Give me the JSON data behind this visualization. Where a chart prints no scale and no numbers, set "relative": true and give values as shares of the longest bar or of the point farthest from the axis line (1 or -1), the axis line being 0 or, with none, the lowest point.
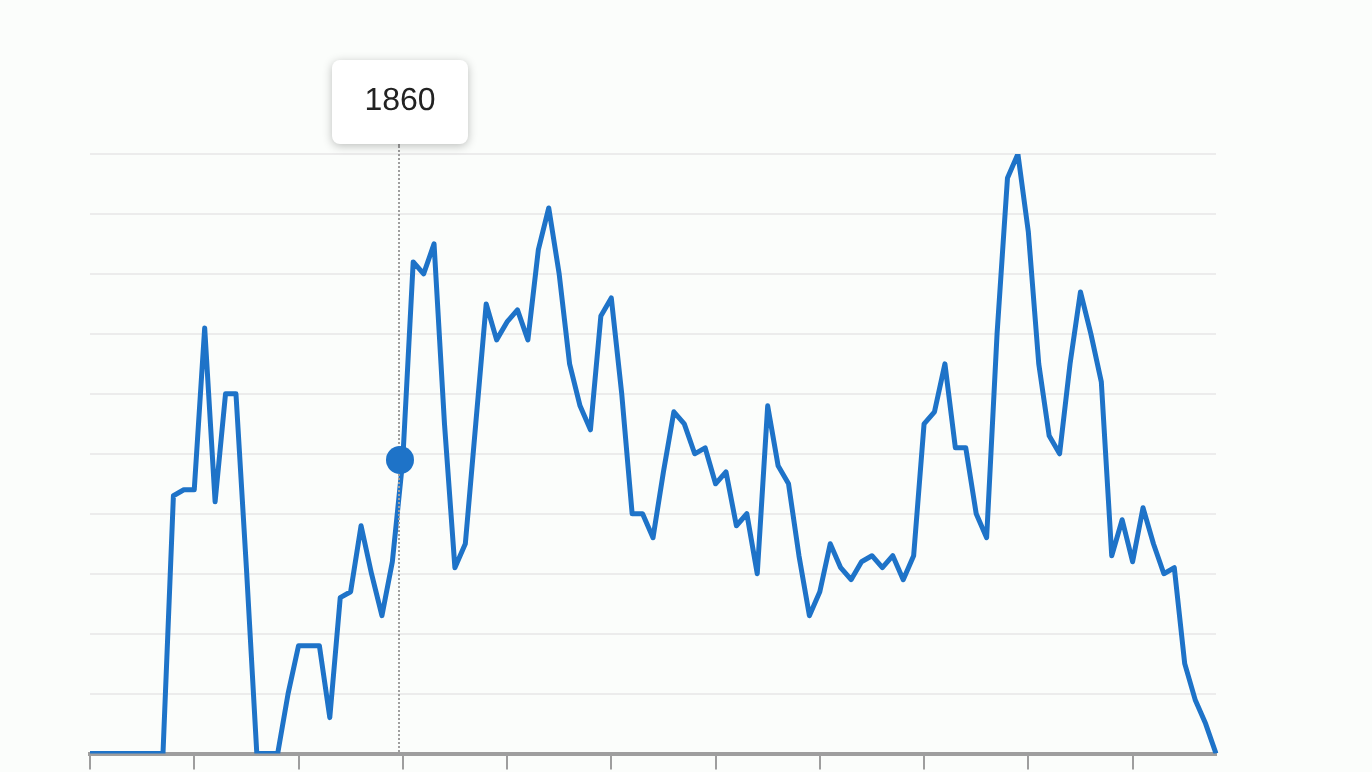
{
  "chart_data": {
    "type": "line",
    "relative": true,
    "grid": "y",
    "marker": "none",
    "line_style": "solid",
    "legend": false,
    "categories": [
      null,
      null,
      null,
      null,
      null,
      null,
      null,
      null,
      null,
      null,
      null,
      null,
      null,
      null,
      null,
      null,
      null,
      null,
      null,
      null,
      null,
      null,
      null,
      null,
      null,
      null,
      null,
      null,
      null,
      null,
      null,
      null,
      null,
      null,
      null,
      null,
      null,
      null,
      null,
      null,
      null,
      null,
      null,
      null,
      null,
      null,
      null,
      null,
      null,
      null,
      null,
      null,
      null,
      null,
      null,
      null,
      null,
      null,
      null,
      null,
      null,
      null,
      null,
      null,
      null,
      null,
      null,
      null,
      null,
      null,
      null,
      null,
      null,
      null,
      null,
      null,
      null,
      null,
      null,
      null,
      null,
      null,
      null,
      null,
      null,
      null,
      null,
      null,
      null,
      null,
      null,
      null,
      null,
      null,
      null,
      null,
      null,
      null,
      null,
      null,
      null,
      null,
      null,
      null,
      null,
      null,
      null,
      null,
      null
    ],
    "series": [
      {
        "color": "#1e73c8",
        "values": [
          0,
          0,
          0,
          0,
          0,
          0,
          0,
          0,
          0.43,
          0.44,
          0.44,
          0.71,
          0.42,
          0.6,
          0.6,
          0.31,
          0,
          0,
          0,
          0.1,
          0.18,
          0.18,
          0.18,
          0.06,
          0.26,
          0.27,
          0.38,
          0.3,
          0.23,
          0.32,
          0.49,
          0.82,
          0.8,
          0.85,
          0.55,
          0.31,
          0.35,
          0.55,
          0.75,
          0.69,
          0.72,
          0.74,
          0.69,
          0.84,
          0.91,
          0.8,
          0.65,
          0.58,
          0.54,
          0.73,
          0.76,
          0.6,
          0.4,
          0.4,
          0.36,
          0.47,
          0.57,
          0.55,
          0.5,
          0.51,
          0.45,
          0.47,
          0.38,
          0.4,
          0.3,
          0.58,
          0.48,
          0.45,
          0.33,
          0.23,
          0.27,
          0.35,
          0.31,
          0.29,
          0.32,
          0.33,
          0.31,
          0.33,
          0.29,
          0.33,
          0.55,
          0.57,
          0.65,
          0.51,
          0.51,
          0.4,
          0.36,
          0.7,
          0.96,
          1,
          0.87,
          0.65,
          0.53,
          0.5,
          0.65,
          0.77,
          0.7,
          0.62,
          0.33,
          0.39,
          0.32,
          0.41,
          0.35,
          0.3,
          0.31,
          0.15,
          0.09,
          0.05,
          0
        ]
      }
    ],
    "annotations": [
      "1860"
    ]
  }
}
